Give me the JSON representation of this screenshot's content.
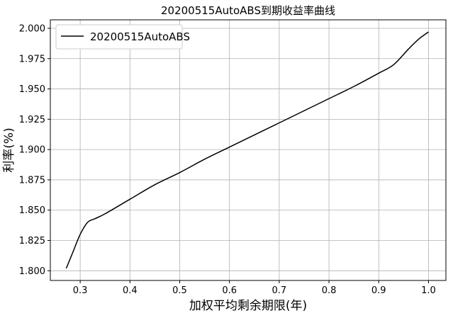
{
  "chart_data": {
    "type": "line",
    "title": "20200515AutoABS到期收益率曲线",
    "xlabel": "加权平均剩余期限(年)",
    "ylabel": "利率(%)",
    "xlim": [
      0.24,
      1.035
    ],
    "ylim": [
      1.792,
      2.007
    ],
    "x_ticks": [
      0.3,
      0.4,
      0.5,
      0.6,
      0.7,
      0.8,
      0.9,
      1.0
    ],
    "x_tick_labels": [
      "0.3",
      "0.4",
      "0.5",
      "0.6",
      "0.7",
      "0.8",
      "0.9",
      "1.0"
    ],
    "y_ticks": [
      1.8,
      1.825,
      1.85,
      1.875,
      1.9,
      1.925,
      1.95,
      1.975,
      2.0
    ],
    "y_tick_labels": [
      "1.800",
      "1.825",
      "1.850",
      "1.875",
      "1.900",
      "1.925",
      "1.950",
      "1.975",
      "2.000"
    ],
    "grid": true,
    "legend_position": "top-left",
    "line_color": "#000000",
    "grid_color": "#b0b0b0",
    "series": [
      {
        "name": "20200515AutoABS",
        "x": [
          0.272,
          0.285,
          0.3,
          0.315,
          0.33,
          0.35,
          0.4,
          0.45,
          0.5,
          0.55,
          0.6,
          0.65,
          0.7,
          0.75,
          0.8,
          0.85,
          0.9,
          0.93,
          0.96,
          0.98,
          1.0
        ],
        "y": [
          1.802,
          1.815,
          1.83,
          1.84,
          1.843,
          1.847,
          1.859,
          1.871,
          1.881,
          1.892,
          1.902,
          1.912,
          1.922,
          1.932,
          1.942,
          1.952,
          1.963,
          1.97,
          1.983,
          1.991,
          1.997
        ]
      }
    ]
  }
}
